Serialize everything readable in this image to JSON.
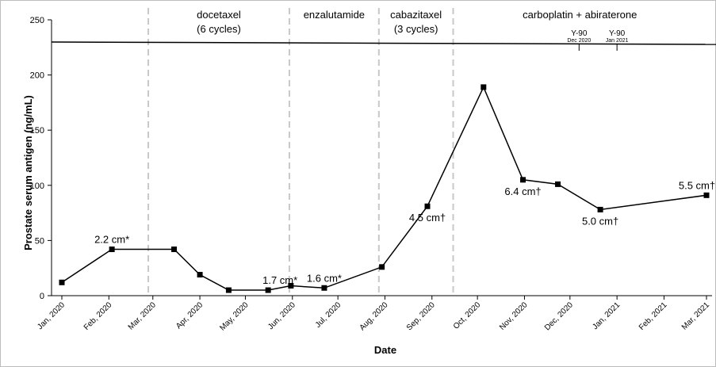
{
  "chart_data": {
    "type": "line",
    "xlabel": "Date",
    "ylabel": "Prostate serum antigen (ng/mL)",
    "ylim": [
      0,
      250
    ],
    "yticks": [
      0,
      50,
      100,
      150,
      200,
      250
    ],
    "xlim": [
      "2020-01-01",
      "2021-03-01"
    ],
    "xtick_labels": [
      "Jan, 2020",
      "Feb, 2020",
      "Mar, 2020",
      "Apr, 2020",
      "May, 2020",
      "Jun, 2020",
      "Jul, 2020",
      "Aug, 2020",
      "Sep, 2020",
      "Oct, 2020",
      "Nov, 2020",
      "Dec, 2020",
      "Jan, 2021",
      "Feb, 2021",
      "Mar, 2021"
    ],
    "xtick_dates": [
      "2020-01-01",
      "2020-02-01",
      "2020-03-01",
      "2020-04-01",
      "2020-05-01",
      "2020-06-01",
      "2020-07-01",
      "2020-08-01",
      "2020-09-01",
      "2020-10-01",
      "2020-11-01",
      "2020-12-01",
      "2021-01-01",
      "2021-02-01",
      "2021-03-01"
    ],
    "points": [
      {
        "date": "2020-01-01",
        "value": 12
      },
      {
        "date": "2020-02-03",
        "value": 42
      },
      {
        "date": "2020-03-15",
        "value": 42
      },
      {
        "date": "2020-04-01",
        "value": 19
      },
      {
        "date": "2020-04-20",
        "value": 5
      },
      {
        "date": "2020-05-16",
        "value": 5
      },
      {
        "date": "2020-05-31",
        "value": 9
      },
      {
        "date": "2020-06-22",
        "value": 7
      },
      {
        "date": "2020-07-30",
        "value": 26
      },
      {
        "date": "2020-08-29",
        "value": 81
      },
      {
        "date": "2020-10-05",
        "value": 189
      },
      {
        "date": "2020-10-31",
        "value": 105
      },
      {
        "date": "2020-11-23",
        "value": 101
      },
      {
        "date": "2020-12-21",
        "value": 78
      },
      {
        "date": "2021-03-01",
        "value": 91
      }
    ],
    "phase_boundaries": [
      "2020-02-27",
      "2020-05-30",
      "2020-07-28",
      "2020-09-15"
    ],
    "phases": [
      {
        "line1": "docetaxel",
        "line2": "(6 cycles)",
        "start": "2020-02-27",
        "end": "2020-05-30"
      },
      {
        "line1": "enzalutamide",
        "line2": "",
        "start": "2020-05-30",
        "end": "2020-07-28"
      },
      {
        "line1": "cabazitaxel",
        "line2": "(3 cycles)",
        "start": "2020-07-28",
        "end": "2020-09-15"
      },
      {
        "line1": "carboplatin + abiraterone",
        "line2": "",
        "start": "2020-09-15",
        "end": "2021-03-01"
      }
    ],
    "annotations": [
      {
        "text": "2.2 cm*",
        "date": "2020-02-03",
        "value": 42,
        "pos": "above"
      },
      {
        "text": "1.7 cm*",
        "date": "2020-05-16",
        "value": 5,
        "pos": "above-right"
      },
      {
        "text": "1.6 cm*",
        "date": "2020-06-22",
        "value": 7,
        "pos": "above"
      },
      {
        "text": "4.5 cm†",
        "date": "2020-08-29",
        "value": 81,
        "pos": "below"
      },
      {
        "text": "6.4 cm†",
        "date": "2020-10-31",
        "value": 105,
        "pos": "below"
      },
      {
        "text": "5.0 cm†",
        "date": "2020-12-21",
        "value": 78,
        "pos": "below"
      },
      {
        "text": "5.5 cm†",
        "date": "2021-03-01",
        "value": 91,
        "pos": "above-left"
      }
    ],
    "radiotherapy": [
      {
        "label": "Y-90",
        "date_label": "Dec 2020",
        "date": "2020-12-07"
      },
      {
        "label": "Y-90",
        "date_label": "Jan 2021",
        "date": "2021-01-01"
      }
    ],
    "grid": false,
    "legend": "none"
  }
}
